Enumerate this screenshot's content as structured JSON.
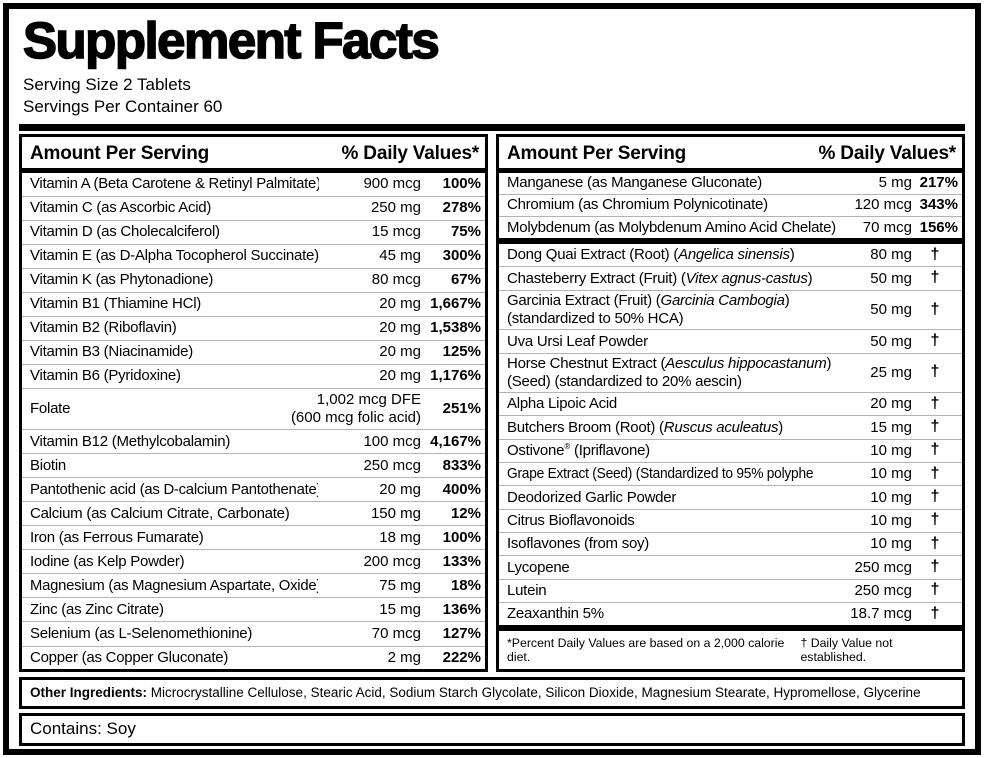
{
  "label": {
    "title": "Supplement Facts",
    "serving_size": "Serving Size 2 Tablets",
    "servings_per_container": "Servings Per Container 60"
  },
  "colors": {
    "text": "#000000",
    "separator": "#b3b3b3",
    "background": "#ffffff"
  },
  "columns": [
    {
      "header": {
        "amount": "Amount Per Serving",
        "dv": "% Daily Values*"
      },
      "rows": [
        {
          "name": "Vitamin A (Beta Carotene & Retinyl Palmitate)",
          "amount": "900 mcg",
          "dv": "100%"
        },
        {
          "name": "Vitamin C (as Ascorbic Acid)",
          "amount": "250 mg",
          "dv": "278%"
        },
        {
          "name": "Vitamin D (as Cholecalciferol)",
          "amount": "15 mcg",
          "dv": "75%"
        },
        {
          "name": "Vitamin E (as D-Alpha Tocopherol Succinate)",
          "amount": "45 mg",
          "dv": "300%"
        },
        {
          "name": "Vitamin K (as Phytonadione)",
          "amount": "80 mcg",
          "dv": "67%"
        },
        {
          "name": "Vitamin B1 (Thiamine HCl)",
          "amount": "20 mg",
          "dv": "1,667%"
        },
        {
          "name": "Vitamin B2 (Riboflavin)",
          "amount": "20 mg",
          "dv": "1,538%"
        },
        {
          "name": "Vitamin B3 (Niacinamide)",
          "amount": "20 mg",
          "dv": "125%"
        },
        {
          "name": "Vitamin B6 (Pyridoxine)",
          "amount": "20 mg",
          "dv": "1,176%"
        },
        {
          "name": "Folate",
          "amount": "1,002 mcg DFE",
          "amount2": "(600 mcg folic acid)",
          "dv": "251%"
        },
        {
          "name": "Vitamin B12 (Methylcobalamin)",
          "amount": "100 mcg",
          "dv": "4,167%"
        },
        {
          "name": "Biotin",
          "amount": "250 mcg",
          "dv": "833%"
        },
        {
          "name": "Pantothenic acid (as D-calcium Pantothenate)",
          "amount": "20 mg",
          "dv": "400%"
        },
        {
          "name": "Calcium (as Calcium Citrate, Carbonate)",
          "amount": "150 mg",
          "dv": "12%"
        },
        {
          "name": "Iron (as Ferrous Fumarate)",
          "amount": "18 mg",
          "dv": "100%"
        },
        {
          "name": "Iodine (as Kelp Powder)",
          "amount": "200 mcg",
          "dv": "133%"
        },
        {
          "name": "Magnesium (as Magnesium Aspartate, Oxide)",
          "amount": "75 mg",
          "dv": "18%"
        },
        {
          "name": "Zinc (as Zinc Citrate)",
          "amount": "15 mg",
          "dv": "136%"
        },
        {
          "name": "Selenium (as L-Selenomethionine)",
          "amount": "70 mcg",
          "dv": "127%"
        },
        {
          "name": "Copper (as Copper Gluconate)",
          "amount": "2 mg",
          "dv": "222%"
        }
      ]
    },
    {
      "header": {
        "amount": "Amount Per Serving",
        "dv": "% Daily Values*"
      },
      "rows": [
        {
          "name": "Manganese (as Manganese Gluconate)",
          "amount": "5 mg",
          "dv": "217%"
        },
        {
          "name": "Chromium (as Chromium Polynicotinate)",
          "amount": "120 mcg",
          "dv": "343%"
        },
        {
          "name": "Molybdenum (as Molybdenum Amino Acid Chelate)",
          "amount": "70 mcg",
          "dv": "156%"
        },
        {
          "divider_before": true,
          "name": [
            {
              "t": "Dong Quai Extract (Root) ("
            },
            {
              "t": "Angelica sinensis",
              "i": true
            },
            {
              "t": ")"
            }
          ],
          "amount": "80 mg",
          "dv": "†"
        },
        {
          "name": [
            {
              "t": "Chasteberry Extract (Fruit) ("
            },
            {
              "t": "Vitex agnus-castus",
              "i": true
            },
            {
              "t": ")"
            }
          ],
          "amount": "50 mg",
          "dv": "†"
        },
        {
          "name": [
            {
              "t": "Garcinia Extract (Fruit) ("
            },
            {
              "t": "Garcinia Cambogia",
              "i": true
            },
            {
              "t": ")"
            },
            {
              "br": true
            },
            {
              "t": "(standardized to 50% HCA)"
            }
          ],
          "amount": "50 mg",
          "dv": "†"
        },
        {
          "name": "Uva Ursi Leaf Powder",
          "amount": "50 mg",
          "dv": "†"
        },
        {
          "name": [
            {
              "t": "Horse Chestnut Extract ("
            },
            {
              "t": "Aesculus hippocastanum",
              "i": true
            },
            {
              "t": ")"
            },
            {
              "br": true
            },
            {
              "t": "(Seed) (standardized to 20% aescin)"
            }
          ],
          "amount": "25 mg",
          "dv": "†"
        },
        {
          "name": "Alpha Lipoic Acid",
          "amount": "20 mg",
          "dv": "†"
        },
        {
          "name": [
            {
              "t": "Butchers Broom (Root) ("
            },
            {
              "t": "Ruscus aculeatus",
              "i": true
            },
            {
              "t": ")"
            }
          ],
          "amount": "15 mg",
          "dv": "†"
        },
        {
          "name": [
            {
              "t": "Ostivone"
            },
            {
              "t": "®",
              "sup": true
            },
            {
              "t": " (Ipriflavone)"
            }
          ],
          "amount": "10 mg",
          "dv": "†"
        },
        {
          "name": "Grape Extract (Seed) (Standardized to 95% polyphenols)",
          "amount": "10 mg",
          "dv": "†"
        },
        {
          "name": "Deodorized Garlic Powder",
          "amount": "10 mg",
          "dv": "†"
        },
        {
          "name": "Citrus Bioflavonoids",
          "amount": "10 mg",
          "dv": "†"
        },
        {
          "name": "Isoflavones (from soy)",
          "amount": "10 mg",
          "dv": "†"
        },
        {
          "name": "Lycopene",
          "amount": "250 mcg",
          "dv": "†"
        },
        {
          "name": "Lutein",
          "amount": "250 mcg",
          "dv": "†"
        },
        {
          "name": "Zeaxanthin 5%",
          "amount": "18.7 mcg",
          "dv": "†"
        }
      ],
      "footnotes": {
        "left": "*Percent Daily Values are based on a 2,000 calorie diet.",
        "right": "† Daily Value not established."
      }
    }
  ],
  "other_ingredients": {
    "label": "Other Ingredients:",
    "text": " Microcrystalline Cellulose, Stearic Acid, Sodium Starch Glycolate, Silicon Dioxide, Magnesium Stearate, Hypromellose, Glycerine"
  },
  "contains": "Contains: Soy"
}
